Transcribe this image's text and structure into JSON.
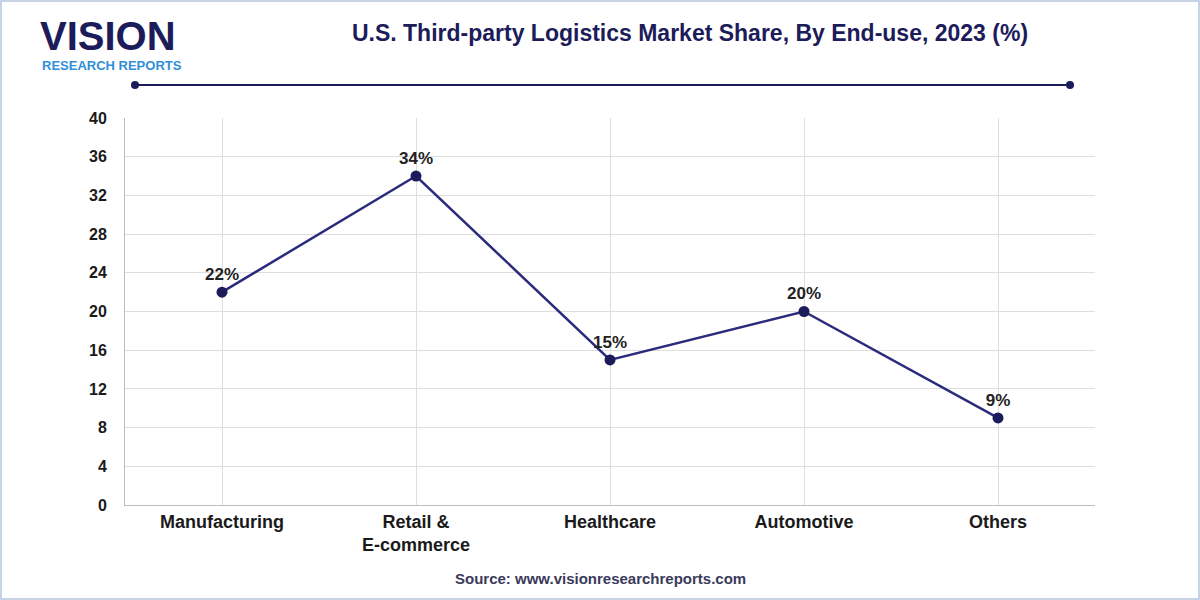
{
  "chart_data": {
    "type": "line",
    "title": "U.S. Third-party Logistics Market Share, By End-use, 2023 (%)",
    "brand": "VISION",
    "brand_subtitle": "RESEARCH REPORTS",
    "source": "Source: www.visionresearchreports.com",
    "categories": [
      "Manufacturing",
      "Retail & E-commerce",
      "Healthcare",
      "Automotive",
      "Others"
    ],
    "values": [
      22,
      34,
      15,
      20,
      9
    ],
    "value_labels": [
      "22%",
      "34%",
      "15%",
      "20%",
      "9%"
    ],
    "data_labels": true,
    "color": "#2b2b7e",
    "marker": "circle",
    "ylim": [
      0,
      40
    ],
    "yticks": [
      0,
      4,
      8,
      12,
      16,
      20,
      24,
      28,
      32,
      36,
      40
    ],
    "grid": true
  }
}
